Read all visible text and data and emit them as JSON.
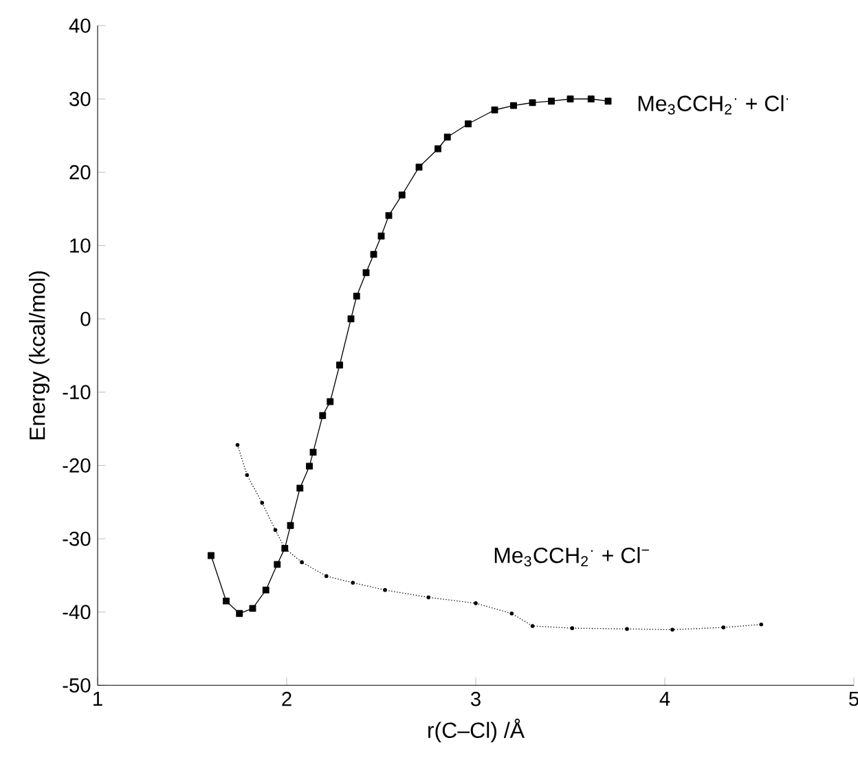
{
  "chart_data": {
    "type": "line",
    "xlabel": "r(C–Cl) /Å",
    "ylabel": "Energy (kcal/mol)",
    "xlim": [
      1,
      5
    ],
    "xticks": [
      1,
      2,
      3,
      4,
      5
    ],
    "ylim": [
      -50,
      40
    ],
    "yticks": [
      -50,
      -40,
      -30,
      -20,
      -10,
      0,
      10,
      20,
      30,
      40
    ],
    "grid": false,
    "series": [
      {
        "color": "#000000",
        "marker": "square",
        "line_style": "solid",
        "x": [
          1.6,
          1.68,
          1.75,
          1.82,
          1.89,
          1.95,
          1.99,
          2.02,
          2.07,
          2.12,
          2.14,
          2.19,
          2.23,
          2.28,
          2.34,
          2.37,
          2.42,
          2.46,
          2.5,
          2.54,
          2.61,
          2.7,
          2.8,
          2.85,
          2.96,
          3.1,
          3.2,
          3.3,
          3.4,
          3.5,
          3.61,
          3.7
        ],
        "values": [
          -32.3,
          -38.5,
          -40.2,
          -39.5,
          -37.0,
          -33.5,
          -31.3,
          -28.2,
          -23.1,
          -20.1,
          -18.2,
          -13.2,
          -11.3,
          -6.3,
          0,
          3.1,
          6.3,
          8.8,
          11.3,
          14.1,
          16.9,
          20.7,
          23.2,
          24.8,
          26.6,
          28.5,
          29.1,
          29.5,
          29.7,
          30.0,
          30.0,
          29.7
        ]
      },
      {
        "color": "#000000",
        "marker": "circle",
        "line_style": "dotted",
        "x": [
          1.74,
          1.79,
          1.87,
          1.94,
          1.99,
          2.08,
          2.21,
          2.35,
          2.52,
          2.75,
          3.0,
          3.19,
          3.3,
          3.51,
          3.8,
          4.04,
          4.31,
          4.51
        ],
        "values": [
          -17.2,
          -21.3,
          -25.1,
          -28.8,
          -31.3,
          -33.2,
          -35.1,
          -36.0,
          -37.0,
          -38.0,
          -38.8,
          -40.2,
          -41.9,
          -42.2,
          -42.3,
          -42.4,
          -42.1,
          -41.7
        ]
      }
    ],
    "annotations": [
      "Me$_{3}$CCH$_{2}$$^{·}$ + Cl$^{·}$",
      "Me$_{3}$CCH$_{2}$$^{·}$ + Cl$^{−}$"
    ]
  }
}
